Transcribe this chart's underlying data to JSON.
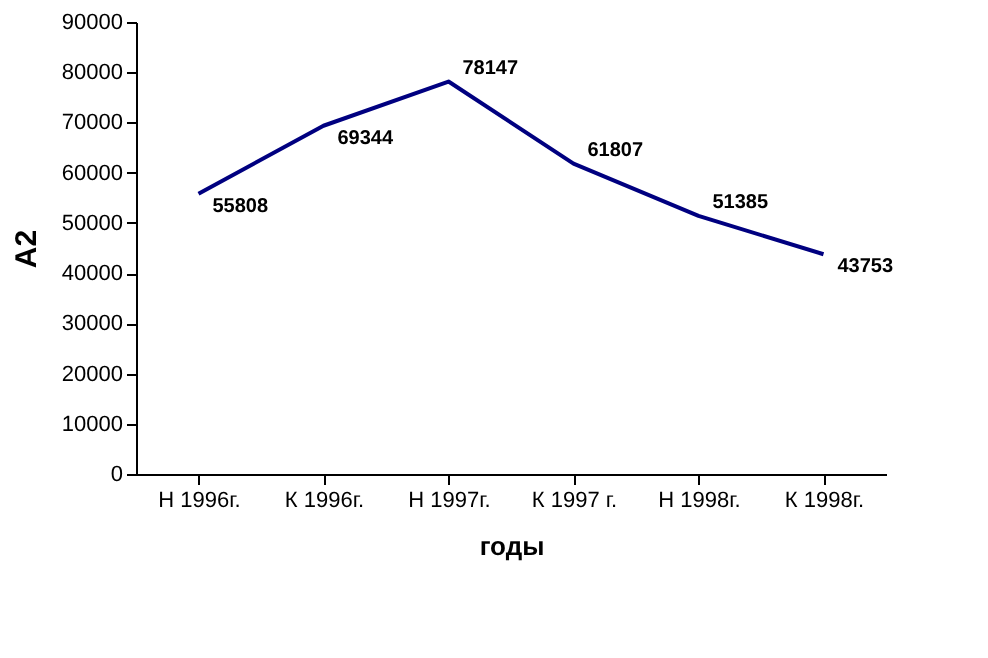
{
  "chart_data": {
    "type": "line",
    "xlabel": "годы",
    "ylabel": "А2",
    "categories": [
      "Н 1996г.",
      "К 1996г.",
      "Н 1997г.",
      "К 1997 г.",
      "Н 1998г.",
      "К 1998г."
    ],
    "series": [
      {
        "color": "#000080",
        "values": [
          55808,
          69344,
          78147,
          61807,
          51385,
          43753
        ]
      }
    ],
    "ylim": [
      0,
      90000
    ],
    "yticks": [
      0,
      10000,
      20000,
      30000,
      40000,
      50000,
      60000,
      70000,
      80000,
      90000
    ],
    "data_labels": true,
    "grid": false,
    "legend": false,
    "marker": "none",
    "line_style": "solid"
  }
}
